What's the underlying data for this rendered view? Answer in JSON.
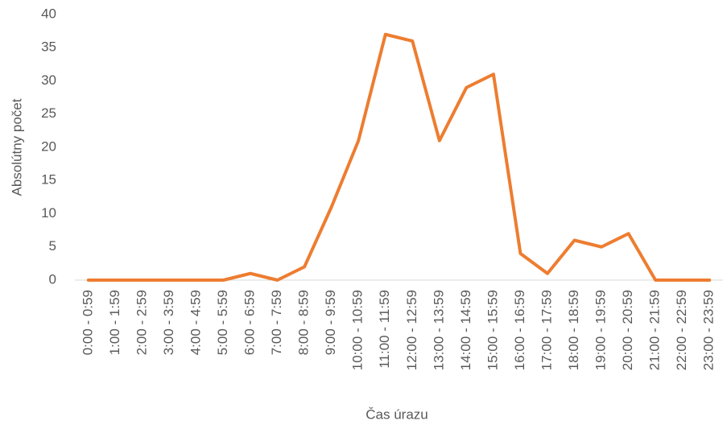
{
  "chart_data": {
    "type": "line",
    "x_label": "Čas úrazu",
    "y_label": "Absolútny počet",
    "categories": [
      "0:00 - 0:59",
      "1:00 - 1:59",
      "2:00 - 2:59",
      "3:00 - 3:59",
      "4:00 - 4:59",
      "5:00 - 5:59",
      "6:00 - 6:59",
      "7:00 - 7:59",
      "8:00 - 8:59",
      "9:00 - 9:59",
      "10:00 - 10:59",
      "11:00 - 11:59",
      "12:00 - 12:59",
      "13:00 - 13:59",
      "14:00 - 14:59",
      "15:00 - 15:59",
      "16:00 - 16:59",
      "17:00 - 17:59",
      "18:00 - 18:59",
      "19:00 - 19:59",
      "20:00 - 20:59",
      "21:00 - 21:59",
      "22:00 - 22:59",
      "23:00 - 23:59"
    ],
    "values": [
      0,
      0,
      0,
      0,
      0,
      0,
      1,
      0,
      2,
      11,
      21,
      37,
      36,
      21,
      29,
      31,
      4,
      1,
      6,
      5,
      7,
      0,
      0,
      0
    ],
    "color": "#ed7d31",
    "ylim": [
      0,
      40
    ],
    "yticks": [
      0,
      5,
      10,
      15,
      20,
      25,
      30,
      35,
      40
    ]
  }
}
